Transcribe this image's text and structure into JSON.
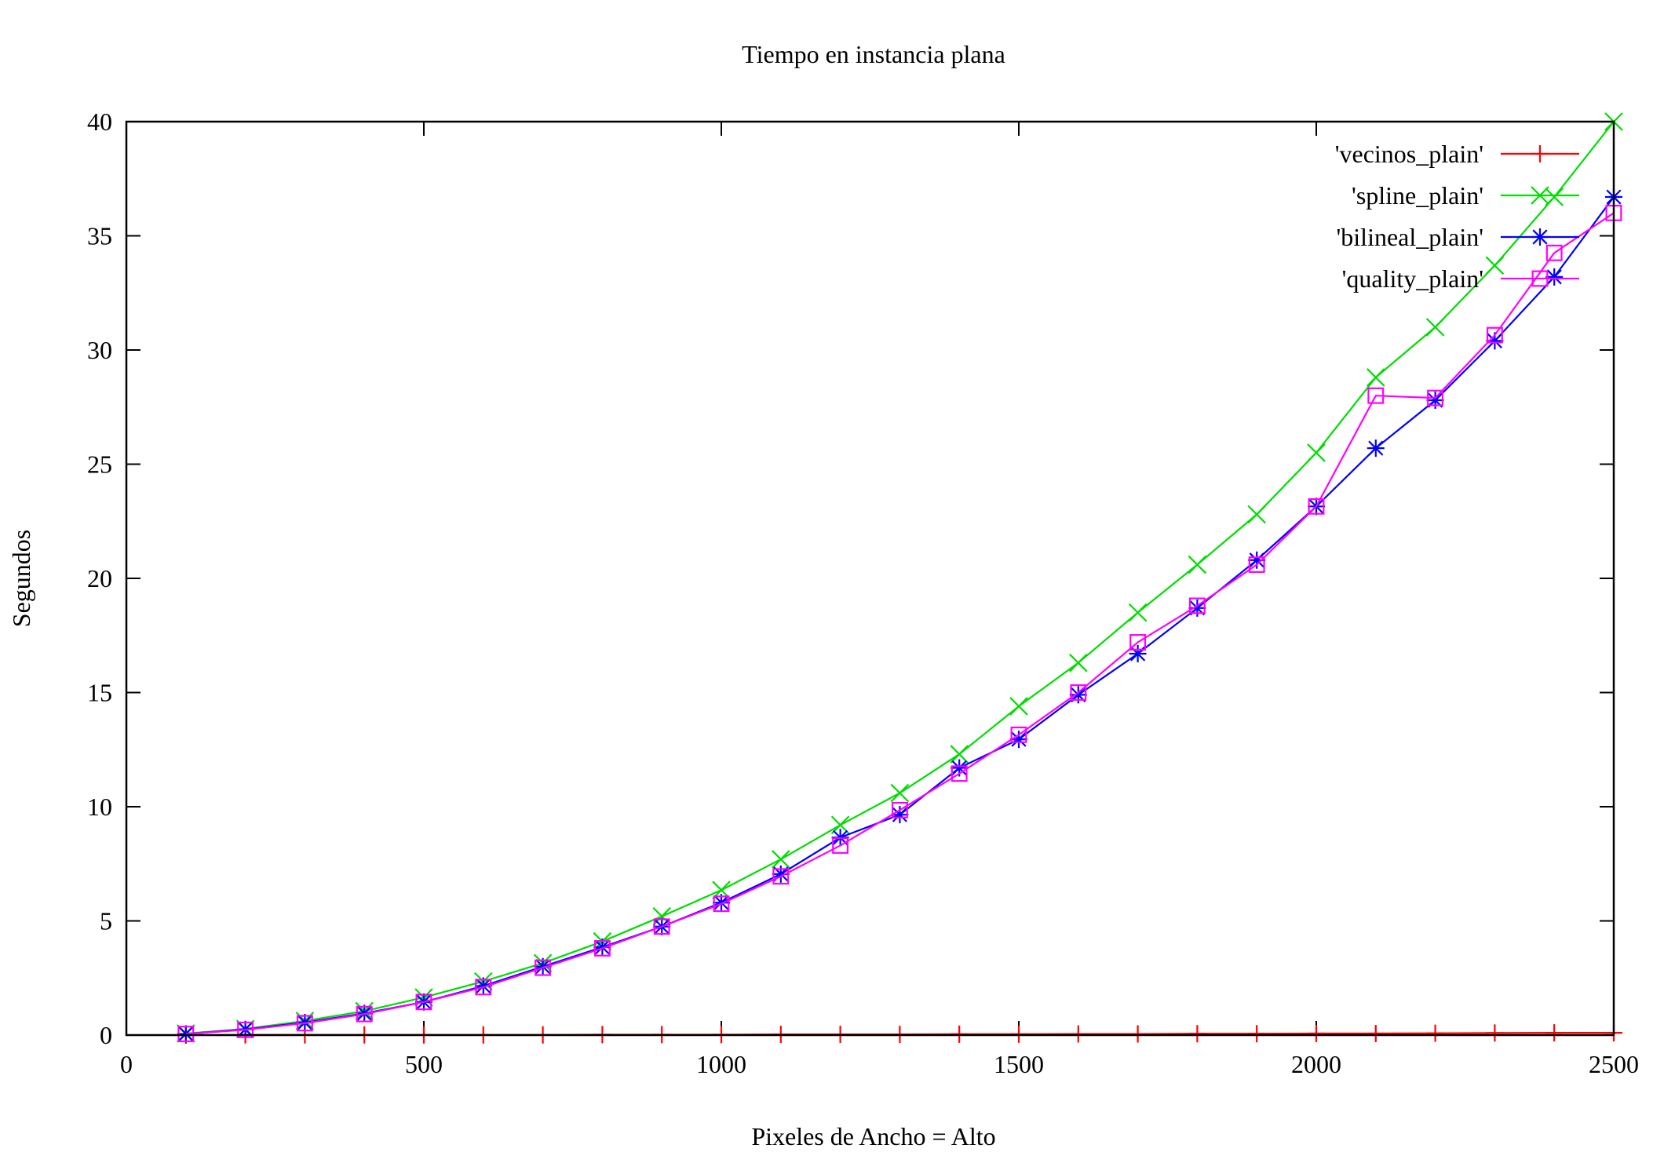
{
  "chart_data": {
    "type": "line",
    "title": "Tiempo en instancia plana",
    "xlabel": "Pixeles de Ancho = Alto",
    "ylabel": "Segundos",
    "xlim": [
      0,
      2500
    ],
    "ylim": [
      0,
      40
    ],
    "xticks": [
      0,
      500,
      1000,
      1500,
      2000,
      2500
    ],
    "yticks": [
      0,
      5,
      10,
      15,
      20,
      25,
      30,
      35,
      40
    ],
    "grid": false,
    "legend_position": "top-right",
    "x": [
      100,
      200,
      300,
      400,
      500,
      600,
      700,
      800,
      900,
      1000,
      1100,
      1200,
      1300,
      1400,
      1500,
      1600,
      1700,
      1800,
      1900,
      2000,
      2100,
      2200,
      2300,
      2400,
      2500
    ],
    "series": [
      {
        "name": "'vecinos_plain'",
        "color": "#ff0000",
        "marker": "plus",
        "values": [
          0.0,
          0.01,
          0.01,
          0.01,
          0.01,
          0.01,
          0.01,
          0.02,
          0.02,
          0.02,
          0.03,
          0.03,
          0.03,
          0.04,
          0.04,
          0.05,
          0.05,
          0.06,
          0.06,
          0.07,
          0.07,
          0.08,
          0.09,
          0.1,
          0.1
        ]
      },
      {
        "name": "'spline_plain'",
        "color": "#00dd00",
        "marker": "cross",
        "values": [
          0.07,
          0.27,
          0.62,
          1.05,
          1.65,
          2.35,
          3.15,
          4.1,
          5.2,
          6.35,
          7.7,
          9.2,
          10.6,
          12.3,
          14.4,
          16.3,
          18.5,
          20.6,
          22.8,
          25.5,
          28.8,
          31.0,
          33.7,
          36.7,
          40.0
        ]
      },
      {
        "name": "'bilineal_plain'",
        "color": "#0000ff",
        "marker": "star",
        "values": [
          0.05,
          0.25,
          0.55,
          0.95,
          1.45,
          2.15,
          3.0,
          3.85,
          4.75,
          5.8,
          7.05,
          8.65,
          9.65,
          11.7,
          12.95,
          14.9,
          16.7,
          18.7,
          20.8,
          23.15,
          25.7,
          27.8,
          30.4,
          33.2,
          36.7
        ]
      },
      {
        "name": "'quality_plain'",
        "color": "#ff00ff",
        "marker": "square",
        "values": [
          0.05,
          0.23,
          0.52,
          0.92,
          1.45,
          2.1,
          2.95,
          3.8,
          4.75,
          5.75,
          6.95,
          8.3,
          9.85,
          11.45,
          13.15,
          15.0,
          17.2,
          18.8,
          20.6,
          23.15,
          28.0,
          27.9,
          30.65,
          34.25,
          36.0
        ]
      }
    ]
  }
}
